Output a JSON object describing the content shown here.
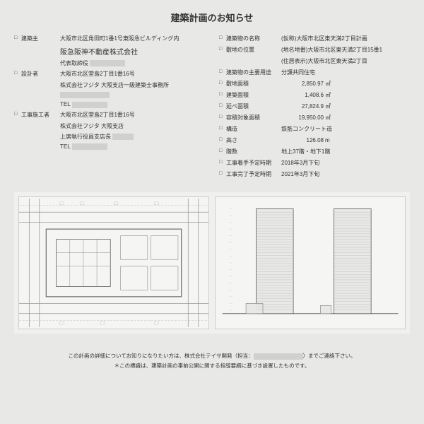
{
  "title": "建築計画のお知らせ",
  "left": {
    "owner_label": "建築主",
    "owner_addr": "大阪市北区角田町1番1号東阪急ビルディング内",
    "owner_company": "阪急阪神不動産株式会社",
    "owner_rep": "代表取締役",
    "designer_label": "設計者",
    "designer_addr": "大阪市北区堂島2丁目1番16号",
    "designer_company": "株式会社フジタ 大阪支店一級建築士事務所",
    "designer_tel": "TEL",
    "builder_label": "工事施工者",
    "builder_addr": "大阪市北区堂島2丁目1番16号",
    "builder_company": "株式会社フジタ 大阪支店",
    "builder_rep": "上席執行役員支店長",
    "builder_tel": "TEL"
  },
  "right": [
    {
      "label": "建築物の名称",
      "value": "(仮称)大阪市北区東天満2丁目計画"
    },
    {
      "label": "敷地の位置",
      "value": "(地名地番)大阪市北区東天満2丁目15番1"
    },
    {
      "label": "",
      "value": "(住居表示)大阪市北区東天満2丁目",
      "no_bullet": true,
      "indent": true
    },
    {
      "label": "建築物の主要用途",
      "value": "分譲共同住宅"
    },
    {
      "label": "敷地面積",
      "num": "2,850.97",
      "unit": "㎡"
    },
    {
      "label": "建築面積",
      "num": "1,408.6",
      "unit": "㎡"
    },
    {
      "label": "延べ面積",
      "num": "27,824.9",
      "unit": "㎡"
    },
    {
      "label": "容積対象面積",
      "num": "19,950.00",
      "unit": "㎡"
    },
    {
      "label": "構造",
      "value": "鉄筋コンクリート造"
    },
    {
      "label": "高さ",
      "num": "126.08",
      "unit": "m"
    },
    {
      "label": "階数",
      "value": "地上37階・地下1階"
    },
    {
      "label": "工事着手予定時期",
      "value": "2018年3月下旬"
    },
    {
      "label": "工事完了予定時期",
      "value": "2021年3月下旬"
    }
  ],
  "footer1": "この計画の詳細についてお知りになりたい方は、株式会社テイサ開発（担当：",
  "footer1_end": "）までご連絡下さい。",
  "footer2": "＊この標識は、建築計画の事前公開に関する指導要綱に基づき設置したものです。",
  "colors": {
    "bg": "#e8e8e6",
    "panel": "#f5f5f3",
    "line": "#999",
    "building": "#888"
  }
}
